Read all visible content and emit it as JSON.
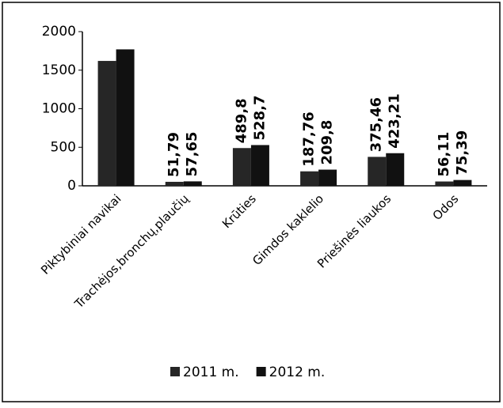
{
  "chart_data": {
    "type": "bar",
    "categories": [
      "Piktybiniai navikai",
      "Trachėjos,bronchų,plaučių",
      "Krūties",
      "Gimdos kaklelio",
      "Priešinės liaukos",
      "Odos"
    ],
    "series": [
      {
        "name": "2011 m.",
        "color": "#262626",
        "values": [
          1620,
          51.79,
          489.8,
          187.76,
          375.46,
          56.11
        ],
        "value_labels": [
          null,
          "51,79",
          "489,8",
          "187,76",
          "375,46",
          "56,11"
        ]
      },
      {
        "name": "2012 m.",
        "color": "#111111",
        "values": [
          1770,
          57.65,
          528.7,
          209.8,
          423.21,
          75.39
        ],
        "value_labels": [
          null,
          "57,65",
          "528,7",
          "209,8",
          "423,21",
          "75,39"
        ]
      }
    ],
    "ylim": [
      0,
      2000
    ],
    "yticks": [
      0,
      500,
      1000,
      1500,
      2000
    ],
    "grid": false,
    "legend": "bottom"
  }
}
